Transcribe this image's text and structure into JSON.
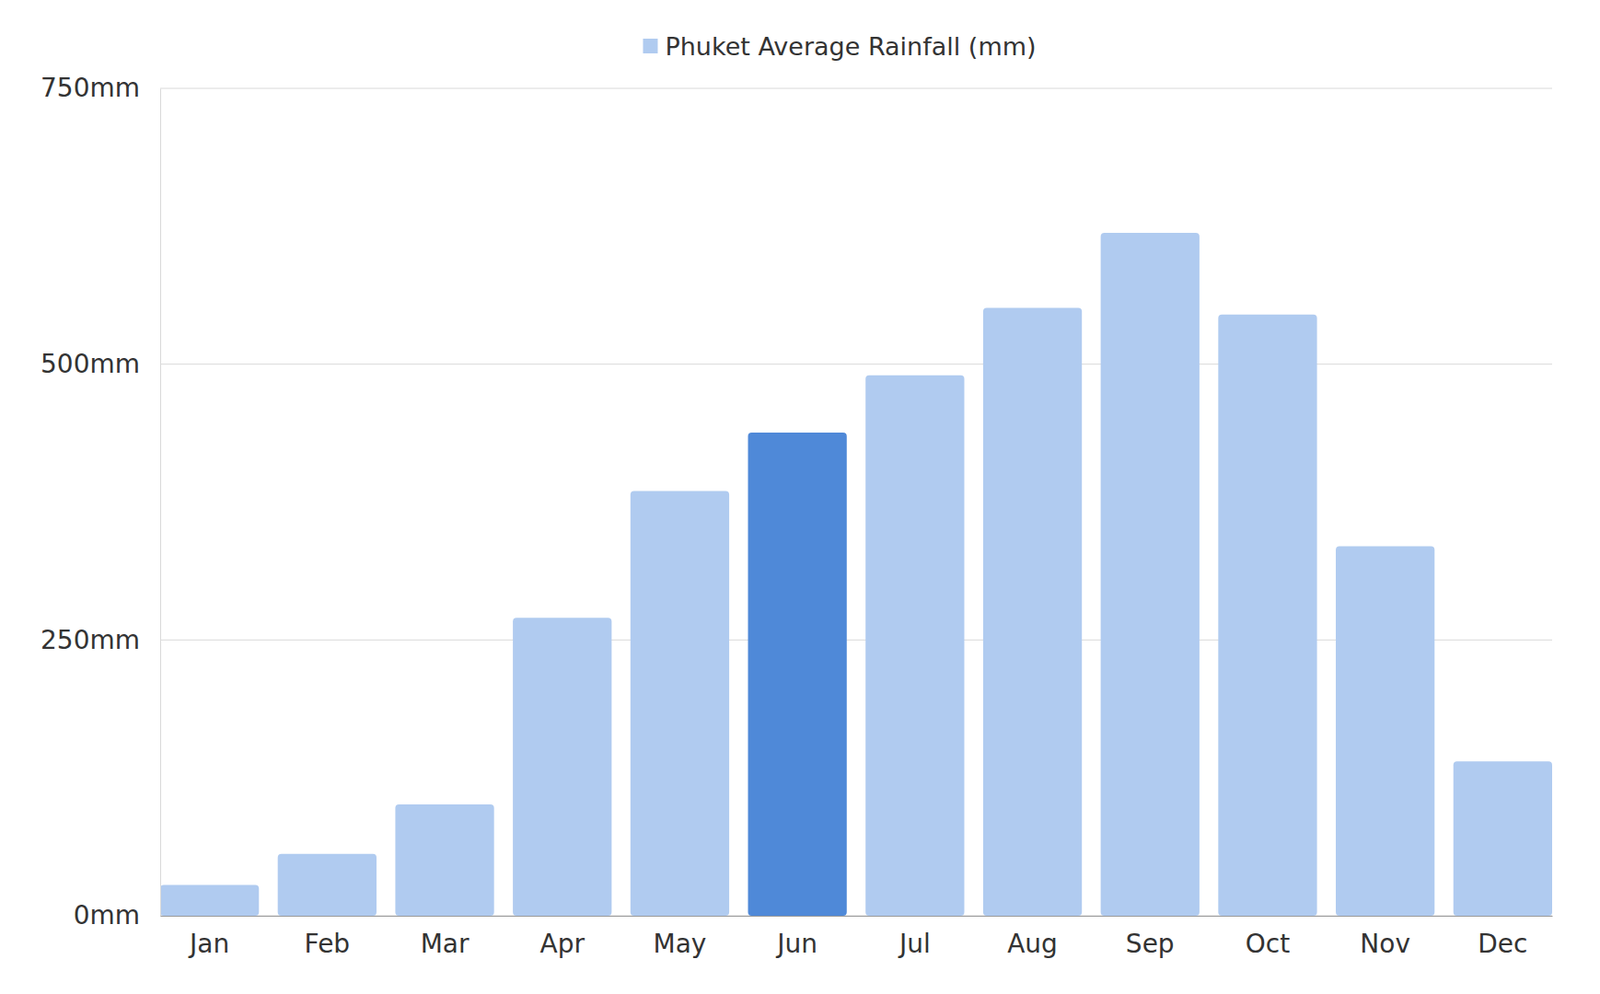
{
  "chart_data": {
    "type": "bar",
    "categories": [
      "Jan",
      "Feb",
      "Mar",
      "Apr",
      "May",
      "Jun",
      "Jul",
      "Aug",
      "Sep",
      "Oct",
      "Nov",
      "Dec"
    ],
    "series": [
      {
        "name": "Phuket Average Rainfall (mm)",
        "color": "#b0cbf0",
        "colors": [
          "#b0cbf0",
          "#b0cbf0",
          "#b0cbf0",
          "#b0cbf0",
          "#b0cbf0",
          "#4f89d8",
          "#b0cbf0",
          "#b0cbf0",
          "#b0cbf0",
          "#b0cbf0",
          "#b0cbf0",
          "#b0cbf0"
        ],
        "values": [
          28,
          56,
          101,
          270,
          385,
          438,
          490,
          551,
          619,
          545,
          335,
          140
        ]
      }
    ],
    "ylim": [
      0,
      750
    ],
    "yticks": [
      {
        "value": 0,
        "label": "0mm"
      },
      {
        "value": 250,
        "label": "250mm"
      },
      {
        "value": 500,
        "label": "500mm"
      },
      {
        "value": 750,
        "label": "750mm"
      }
    ],
    "grid": true,
    "legend": "top"
  }
}
